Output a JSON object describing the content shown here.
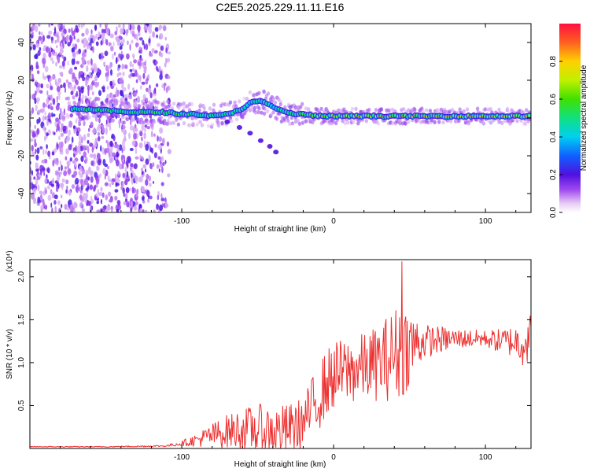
{
  "chart_data": [
    {
      "type": "heatmap",
      "title": "C2E5.2025.229.11.11.E16",
      "xlabel": "Height of straight line (km)",
      "ylabel": "Frequency (Hz)",
      "xlim": [
        -200,
        130
      ],
      "ylim": [
        -50,
        50
      ],
      "x_ticks": [
        -100,
        0,
        100
      ],
      "y_ticks": [
        -40,
        -20,
        0,
        20,
        40
      ],
      "colorbar": {
        "label": "Normalized spectral amplitude",
        "range": [
          0,
          1
        ],
        "ticks": [
          "0.0",
          "0.2",
          "0.4",
          "0.6",
          "0.8"
        ]
      },
      "signal_trace": {
        "x": [
          -170,
          -150,
          -130,
          -110,
          -100,
          -90,
          -80,
          -70,
          -60,
          -55,
          -50,
          -45,
          -40,
          -35,
          -30,
          -25,
          -20,
          -10,
          0,
          20,
          40,
          60,
          80,
          100,
          130
        ],
        "freq_hz": [
          5,
          4,
          3,
          3,
          2,
          2,
          1,
          2,
          5,
          8,
          9,
          8,
          6,
          4,
          3,
          2,
          2,
          1,
          1,
          1,
          1,
          1,
          1,
          1,
          1
        ],
        "amplitude": [
          0.5,
          0.55,
          0.55,
          0.6,
          0.55,
          0.5,
          0.5,
          0.5,
          0.5,
          0.45,
          0.45,
          0.45,
          0.45,
          0.5,
          0.5,
          0.55,
          0.6,
          0.7,
          0.75,
          0.8,
          0.85,
          0.85,
          0.8,
          0.8,
          0.75
        ]
      },
      "branch_trace": {
        "x": [
          -70,
          -62,
          -55,
          -48,
          -42,
          -38
        ],
        "freq_hz": [
          -2,
          -5,
          -8,
          -12,
          -15,
          -18
        ]
      }
    },
    {
      "type": "line",
      "xlabel": "Height of straight line (km)",
      "ylabel": "SNR (10 * v/v)",
      "y_multiplier": "(x10⁴)",
      "xlim": [
        -200,
        130
      ],
      "ylim": [
        0,
        2.2
      ],
      "x_ticks": [
        -100,
        0,
        100
      ],
      "y_ticks": [
        0.5,
        1.0,
        1.5,
        2.0
      ],
      "y_tick_labels": [
        "0.5",
        "1.0",
        "1.5",
        "2.0"
      ],
      "color": "#ee3030",
      "envelope": {
        "x": [
          -200,
          -150,
          -110,
          -100,
          -90,
          -80,
          -70,
          -60,
          -50,
          -40,
          -30,
          -20,
          -15,
          -10,
          -5,
          0,
          10,
          20,
          30,
          40,
          45,
          50,
          60,
          80,
          100,
          110,
          120,
          125,
          130
        ],
        "base": [
          0.02,
          0.02,
          0.03,
          0.06,
          0.1,
          0.15,
          0.2,
          0.22,
          0.22,
          0.2,
          0.22,
          0.3,
          0.45,
          0.6,
          0.75,
          0.85,
          0.9,
          0.95,
          1.0,
          1.1,
          1.15,
          1.2,
          1.25,
          1.28,
          1.28,
          1.25,
          1.25,
          1.25,
          1.28
        ],
        "amp": [
          0.005,
          0.005,
          0.01,
          0.03,
          0.08,
          0.15,
          0.2,
          0.25,
          0.3,
          0.3,
          0.3,
          0.3,
          0.35,
          0.4,
          0.4,
          0.4,
          0.4,
          0.4,
          0.45,
          0.55,
          0.6,
          0.45,
          0.2,
          0.12,
          0.1,
          0.15,
          0.2,
          0.3,
          0.3
        ]
      },
      "peak": {
        "x": 45,
        "y": 2.18
      }
    }
  ]
}
